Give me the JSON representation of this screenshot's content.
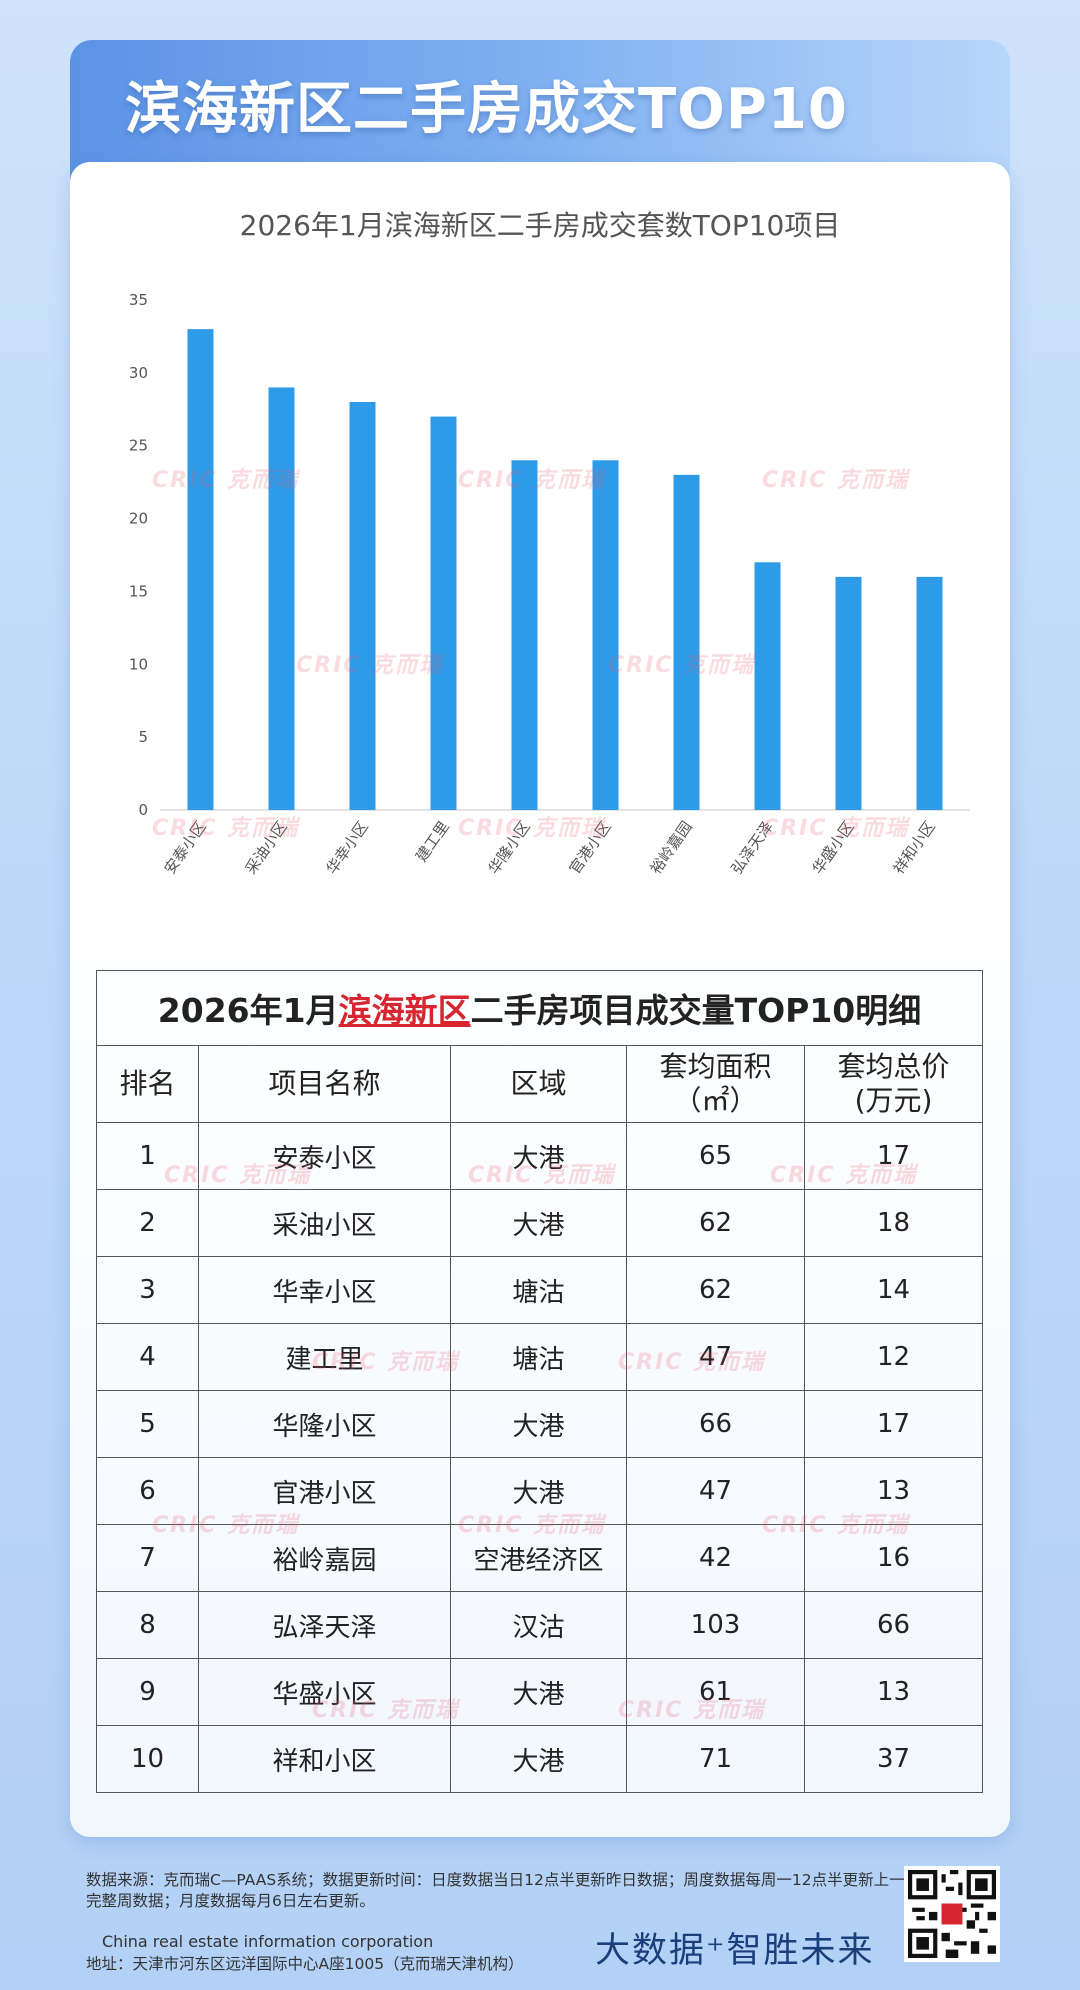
{
  "banner": {
    "title": "滨海新区二手房成交TOP10"
  },
  "watermark_text": "CRIC 克而瑞",
  "chart_data": {
    "type": "bar",
    "title": "2026年1月滨海新区二手房成交套数TOP10项目",
    "categories": [
      "安泰小区",
      "采油小区",
      "华幸小区",
      "建工里",
      "华隆小区",
      "官港小区",
      "裕岭嘉园",
      "弘泽天泽",
      "华盛小区",
      "祥和小区"
    ],
    "values": [
      33,
      29,
      28,
      27,
      24,
      24,
      23,
      17,
      16,
      16
    ],
    "ylim": [
      0,
      35
    ],
    "yticks": [
      0,
      5,
      10,
      15,
      20,
      25,
      30,
      35
    ],
    "xlabel": "",
    "ylabel": "",
    "grid": false,
    "bar_color": "#2e9be9"
  },
  "table": {
    "title_prefix": "2026年1月",
    "title_highlight": "滨海新区",
    "title_suffix": "二手房项目成交量TOP10明细",
    "headers": {
      "rank": "排名",
      "name": "项目名称",
      "area": "区域",
      "size_line1": "套均面积",
      "size_line2": "（㎡）",
      "price_line1": "套均总价",
      "price_line2": "(万元)"
    },
    "rows": [
      [
        "1",
        "安泰小区",
        "大港",
        "65",
        "17"
      ],
      [
        "2",
        "采油小区",
        "大港",
        "62",
        "18"
      ],
      [
        "3",
        "华幸小区",
        "塘沽",
        "62",
        "14"
      ],
      [
        "4",
        "建工里",
        "塘沽",
        "47",
        "12"
      ],
      [
        "5",
        "华隆小区",
        "大港",
        "66",
        "17"
      ],
      [
        "6",
        "官港小区",
        "大港",
        "47",
        "13"
      ],
      [
        "7",
        "裕岭嘉园",
        "空港经济区",
        "42",
        "16"
      ],
      [
        "8",
        "弘泽天泽",
        "汉沽",
        "103",
        "66"
      ],
      [
        "9",
        "华盛小区",
        "大港",
        "61",
        "13"
      ],
      [
        "10",
        "祥和小区",
        "大港",
        "71",
        "37"
      ]
    ]
  },
  "footer": {
    "source": "数据来源：克而瑞C—PAAS系统；数据更新时间：日度数据当日12点半更新昨日数据；周度数据每周一12点半更新上一完整周数据；月度数据每月6日左右更新。",
    "english_name": "China real estate information corporation",
    "address": "地址：天津市河东区远洋国际中心A座1005（克而瑞天津机构）",
    "slogan": "大数据⁺智胜未来"
  }
}
